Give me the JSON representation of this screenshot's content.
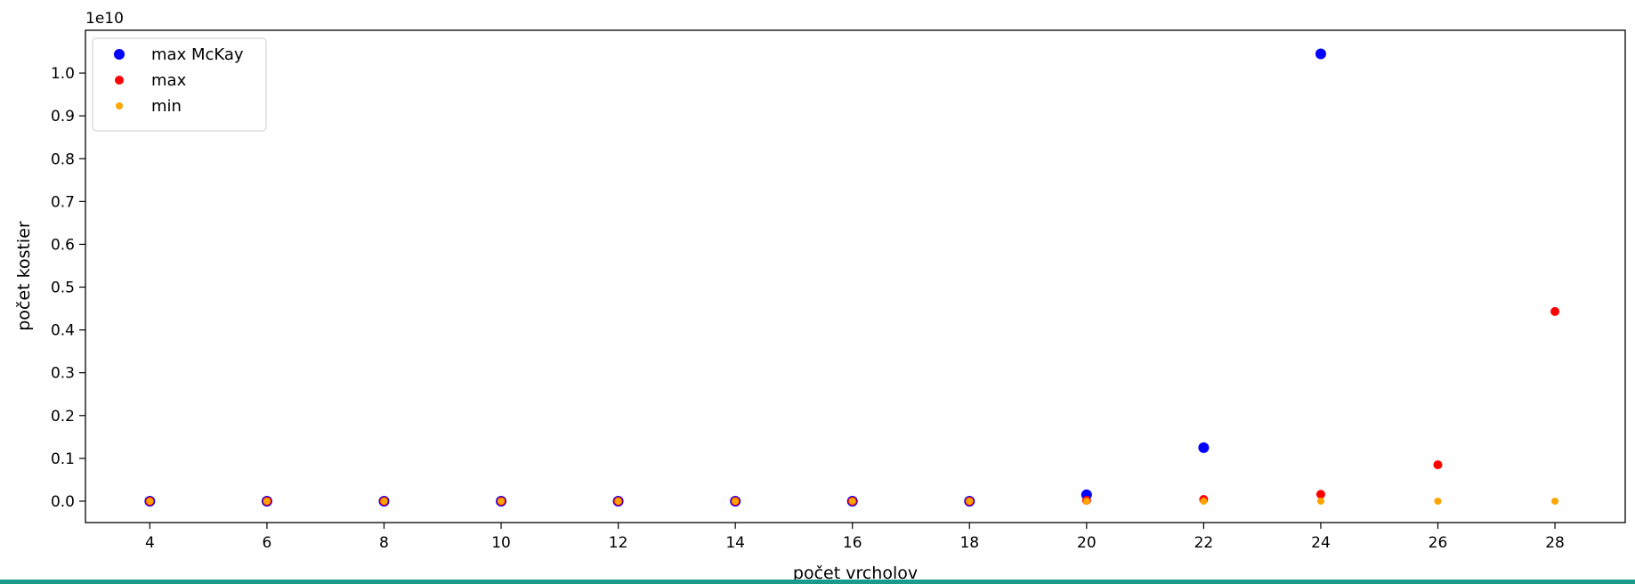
{
  "chart_data": {
    "type": "scatter",
    "title": "",
    "xlabel": "počet vrcholov",
    "ylabel": "počet kostier",
    "offset_label": "1e10",
    "xlim": [
      2.9,
      29.2
    ],
    "ylim": [
      -0.05,
      1.1
    ],
    "y_scale_factor": 10000000000,
    "x_ticks": [
      4,
      6,
      8,
      10,
      12,
      14,
      16,
      18,
      20,
      22,
      24,
      26,
      28
    ],
    "y_ticks": [
      0.0,
      0.1,
      0.2,
      0.3,
      0.4,
      0.5,
      0.6,
      0.7,
      0.8,
      0.9,
      1.0
    ],
    "y_tick_labels": [
      "0.0",
      "0.1",
      "0.2",
      "0.3",
      "0.4",
      "0.5",
      "0.6",
      "0.7",
      "0.8",
      "0.9",
      "1.0"
    ],
    "x_tick_labels": [
      "4",
      "6",
      "8",
      "10",
      "12",
      "14",
      "16",
      "18",
      "20",
      "22",
      "24",
      "26",
      "28"
    ],
    "grid": false,
    "legend_position": "top-left",
    "series": [
      {
        "name": "max McKay",
        "color": "#0000ff",
        "marker_radius": 6,
        "x": [
          4,
          6,
          8,
          10,
          12,
          14,
          16,
          18,
          20,
          22,
          24
        ],
        "y": [
          0.0,
          0.0,
          0.0,
          0.0,
          0.0,
          0.0,
          0.0,
          0.0,
          0.015,
          0.125,
          1.045
        ]
      },
      {
        "name": "max",
        "color": "#ff0000",
        "marker_radius": 5,
        "x": [
          4,
          6,
          8,
          10,
          12,
          14,
          16,
          18,
          20,
          22,
          24,
          26,
          28
        ],
        "y": [
          0.0,
          0.0,
          0.0,
          0.0,
          0.0,
          0.0,
          0.0,
          0.0,
          0.002,
          0.004,
          0.016,
          0.085,
          0.443
        ]
      },
      {
        "name": "min",
        "color": "#ffa500",
        "marker_radius": 4,
        "x": [
          4,
          6,
          8,
          10,
          12,
          14,
          16,
          18,
          20,
          22,
          24,
          26,
          28
        ],
        "y": [
          0.0,
          0.0,
          0.0,
          0.0,
          0.0,
          0.0,
          0.0,
          0.0,
          0.0,
          0.0,
          0.0,
          0.0,
          0.0
        ]
      }
    ]
  },
  "bottom_bar_color": "#1a9a8a"
}
